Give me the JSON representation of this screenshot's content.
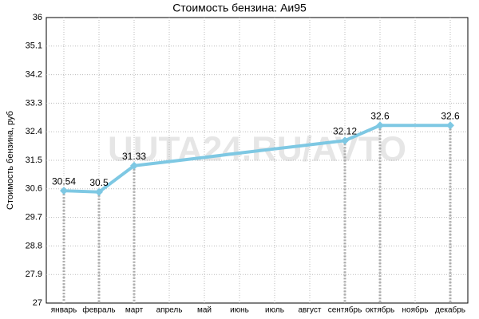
{
  "chart_data": {
    "type": "line",
    "title": "Стоимость бензина: Аи95",
    "y_label": "Стоимость бензина, руб",
    "watermark": "UUTA24.RU/AVTO",
    "categories": [
      "январь",
      "февраль",
      "март",
      "апрель",
      "май",
      "июнь",
      "июль",
      "август",
      "сентябрь",
      "октябрь",
      "ноябрь",
      "декабрь"
    ],
    "series": [
      {
        "name": "Аи95",
        "color": "#7ec8e3",
        "values": [
          30.54,
          30.5,
          31.33,
          31.46,
          31.59,
          31.73,
          31.86,
          31.99,
          32.12,
          32.6,
          32.6,
          32.6
        ],
        "value_labels": [
          "30.54",
          "30.5",
          "31.33",
          null,
          null,
          null,
          null,
          null,
          "32.12",
          "32.6",
          null,
          "32.6"
        ]
      }
    ],
    "ylim": [
      27,
      36
    ],
    "yticks": [
      27,
      27.9,
      28.8,
      29.7,
      30.6,
      31.5,
      32.4,
      33.3,
      34.2,
      35.1,
      36
    ],
    "grid": true
  }
}
